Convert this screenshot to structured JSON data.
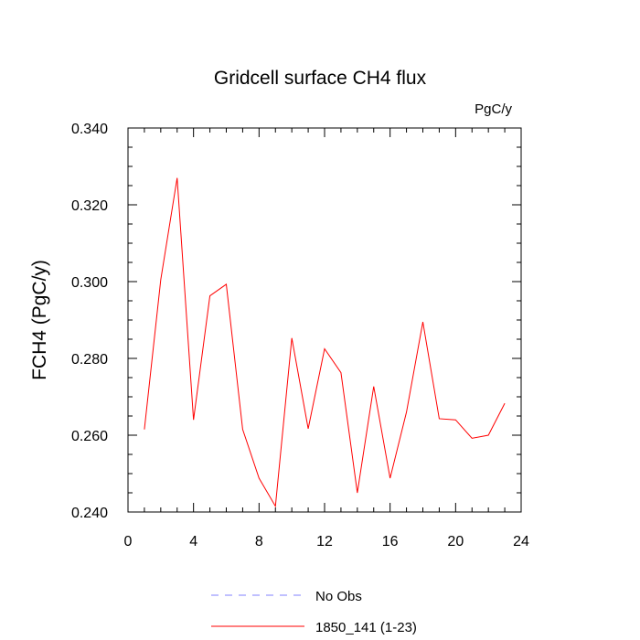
{
  "chart_data": {
    "type": "line",
    "title": "Gridcell surface CH4 flux",
    "units": "PgC/y",
    "ylabel": "FCH4  (PgC/y)",
    "xlabel": "",
    "xlim": [
      0,
      24
    ],
    "ylim": [
      0.24,
      0.34
    ],
    "x_ticks": [
      0,
      4,
      8,
      12,
      16,
      20,
      24
    ],
    "x_tick_labels": [
      "0",
      "4",
      "8",
      "12",
      "16",
      "20",
      "24"
    ],
    "y_ticks": [
      0.24,
      0.26,
      0.28,
      0.3,
      0.32,
      0.34
    ],
    "y_tick_labels": [
      "0.240",
      "0.260",
      "0.280",
      "0.300",
      "0.320",
      "0.340"
    ],
    "grid": false,
    "legend_position": "bottom",
    "legend": [
      {
        "label": "No Obs",
        "style": "dashed",
        "color": "#8080ff"
      },
      {
        "label": "1850_141 (1-23)",
        "style": "solid",
        "color": "#ff0000"
      }
    ],
    "series": [
      {
        "name": "1850_141 (1-23)",
        "color": "#ff0000",
        "x": [
          1,
          2,
          3,
          4,
          5,
          6,
          7,
          8,
          9,
          10,
          11,
          12,
          13,
          14,
          15,
          16,
          17,
          18,
          19,
          20,
          21,
          22,
          23
        ],
        "y": [
          0.2615,
          0.3005,
          0.327,
          0.264,
          0.2963,
          0.2993,
          0.2615,
          0.2488,
          0.2415,
          0.2853,
          0.2617,
          0.2825,
          0.2763,
          0.245,
          0.2727,
          0.2488,
          0.266,
          0.2895,
          0.2643,
          0.264,
          0.2592,
          0.26,
          0.2683
        ]
      }
    ]
  }
}
